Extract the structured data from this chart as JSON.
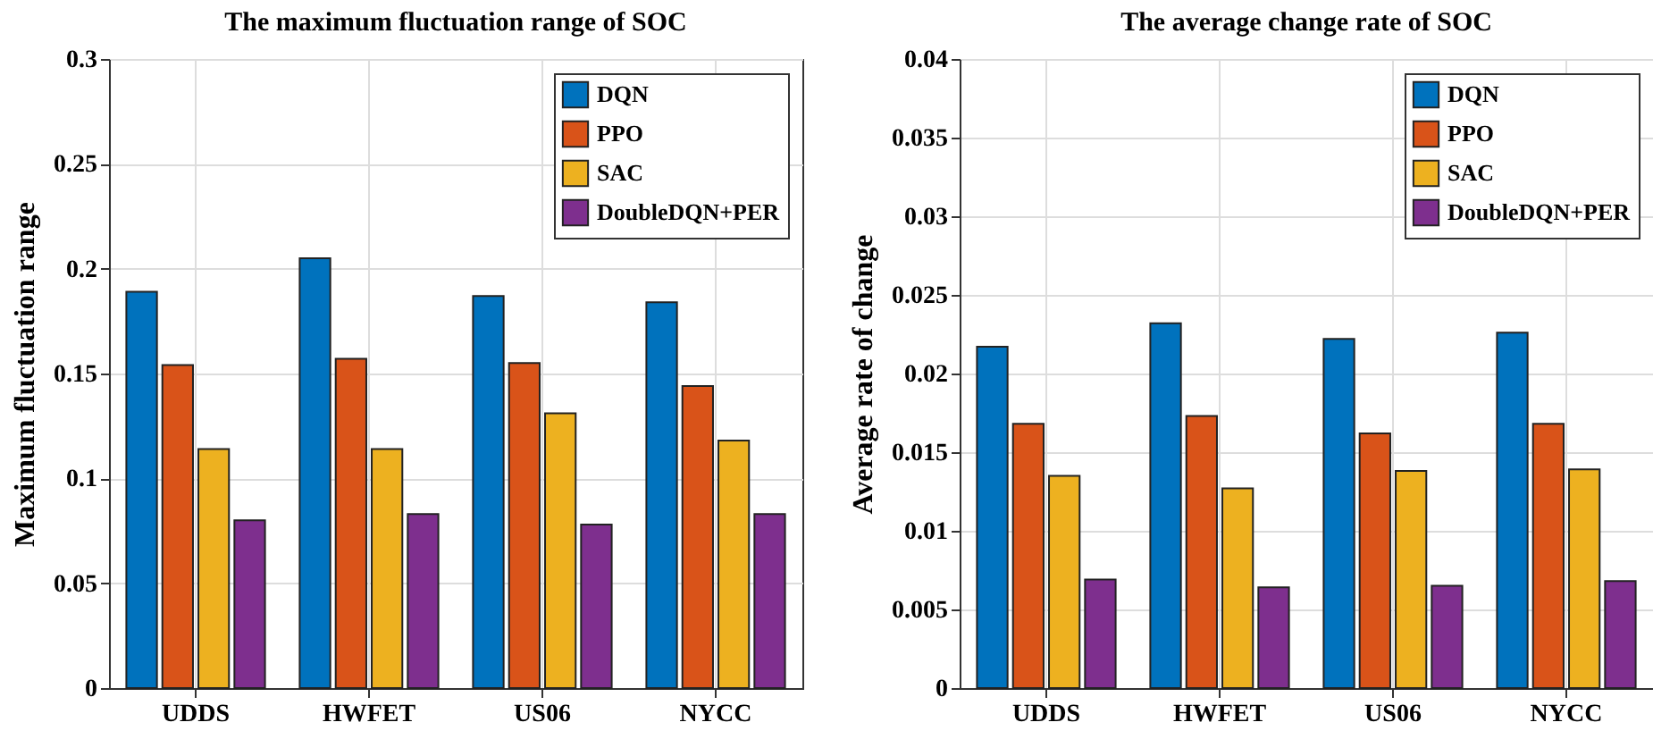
{
  "chart_data": [
    {
      "type": "bar",
      "title": "The maximum fluctuation range of SOC",
      "ylabel": "Maximum fluctuation range",
      "categories": [
        "UDDS",
        "HWFET",
        "US06",
        "NYCC"
      ],
      "series": [
        {
          "name": "DQN",
          "color": "#0072bd",
          "values": [
            0.189,
            0.205,
            0.187,
            0.184
          ]
        },
        {
          "name": "PPO",
          "color": "#d95319",
          "values": [
            0.154,
            0.157,
            0.155,
            0.144
          ]
        },
        {
          "name": "SAC",
          "color": "#edb120",
          "values": [
            0.114,
            0.114,
            0.131,
            0.118
          ]
        },
        {
          "name": "DoubleDQN+PER",
          "color": "#7e2f8e",
          "values": [
            0.08,
            0.083,
            0.078,
            0.083
          ]
        }
      ],
      "ylim": [
        0,
        0.3
      ],
      "yticks": [
        0,
        0.05,
        0.1,
        0.15,
        0.2,
        0.25,
        0.3
      ],
      "grid": true,
      "legend": "top right"
    },
    {
      "type": "bar",
      "title": "The average change rate of SOC",
      "ylabel": "Average rate of change",
      "categories": [
        "UDDS",
        "HWFET",
        "US06",
        "NYCC"
      ],
      "series": [
        {
          "name": "DQN",
          "color": "#0072bd",
          "values": [
            0.0217,
            0.0232,
            0.0222,
            0.0226
          ]
        },
        {
          "name": "PPO",
          "color": "#d95319",
          "values": [
            0.0168,
            0.0173,
            0.0162,
            0.0168
          ]
        },
        {
          "name": "SAC",
          "color": "#edb120",
          "values": [
            0.0135,
            0.0127,
            0.0138,
            0.0139
          ]
        },
        {
          "name": "DoubleDQN+PER",
          "color": "#7e2f8e",
          "values": [
            0.0069,
            0.0064,
            0.0065,
            0.0068
          ]
        }
      ],
      "ylim": [
        0,
        0.04
      ],
      "yticks": [
        0,
        0.005,
        0.01,
        0.015,
        0.02,
        0.025,
        0.03,
        0.035,
        0.04
      ],
      "grid": true,
      "legend": "top right"
    }
  ]
}
